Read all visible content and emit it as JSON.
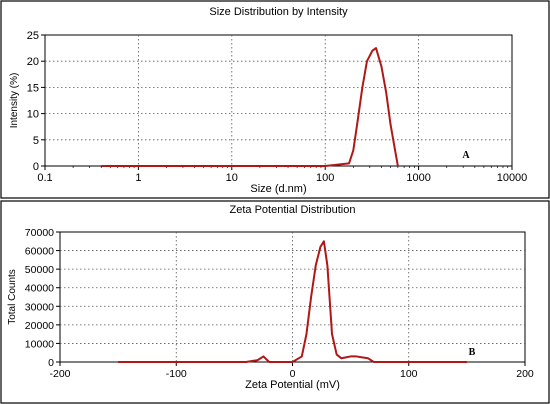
{
  "chart_data": [
    {
      "type": "line",
      "title": "Size Distribution by Intensity",
      "xlabel": "Size (d.nm)",
      "ylabel": "Intensity (%)",
      "xscale": "log",
      "xlim": [
        0.1,
        10000
      ],
      "ylim": [
        0,
        25
      ],
      "xticks": [
        0.1,
        1,
        10,
        100,
        1000,
        10000
      ],
      "xtick_labels": [
        "0.1",
        "1",
        "10",
        "100",
        "1000",
        "10000"
      ],
      "yticks": [
        0,
        5,
        10,
        15,
        20,
        25
      ],
      "ytick_labels": [
        "0",
        "5",
        "10",
        "15",
        "20",
        "25"
      ],
      "grid": true,
      "annotation": "A",
      "line_color": "#b01818",
      "series": [
        {
          "x": [
            0.4,
            100,
            180,
            200,
            220,
            250,
            280,
            320,
            350,
            400,
            450,
            500,
            560,
            600
          ],
          "y": [
            0,
            0,
            0.5,
            3,
            8,
            15,
            20,
            22,
            22.5,
            19,
            14,
            8,
            3,
            0
          ]
        }
      ]
    },
    {
      "type": "line",
      "title": "Zeta Potential Distribution",
      "xlabel": "Zeta Potential (mV)",
      "ylabel": "Total Counts",
      "xlim": [
        -200,
        200
      ],
      "ylim": [
        0,
        70000
      ],
      "xticks": [
        -200,
        -100,
        0,
        100,
        200
      ],
      "xtick_labels": [
        "-200",
        "-100",
        "0",
        "100",
        "200"
      ],
      "yticks": [
        0,
        10000,
        20000,
        30000,
        40000,
        50000,
        60000,
        70000
      ],
      "ytick_labels": [
        "0",
        "10000",
        "20000",
        "30000",
        "40000",
        "50000",
        "60000",
        "70000"
      ],
      "grid": true,
      "annotation": "B",
      "line_color": "#b01818",
      "series": [
        {
          "x": [
            -150,
            -40,
            -30,
            -25,
            -20,
            0,
            8,
            12,
            16,
            20,
            24,
            27,
            30,
            34,
            38,
            42,
            46,
            50,
            55,
            60,
            65,
            70,
            150
          ],
          "y": [
            0,
            0,
            1000,
            3000,
            0,
            0,
            3000,
            15000,
            35000,
            52000,
            62000,
            65000,
            52000,
            15000,
            4000,
            2000,
            2500,
            3000,
            3000,
            2500,
            2000,
            0,
            0
          ]
        }
      ]
    }
  ]
}
